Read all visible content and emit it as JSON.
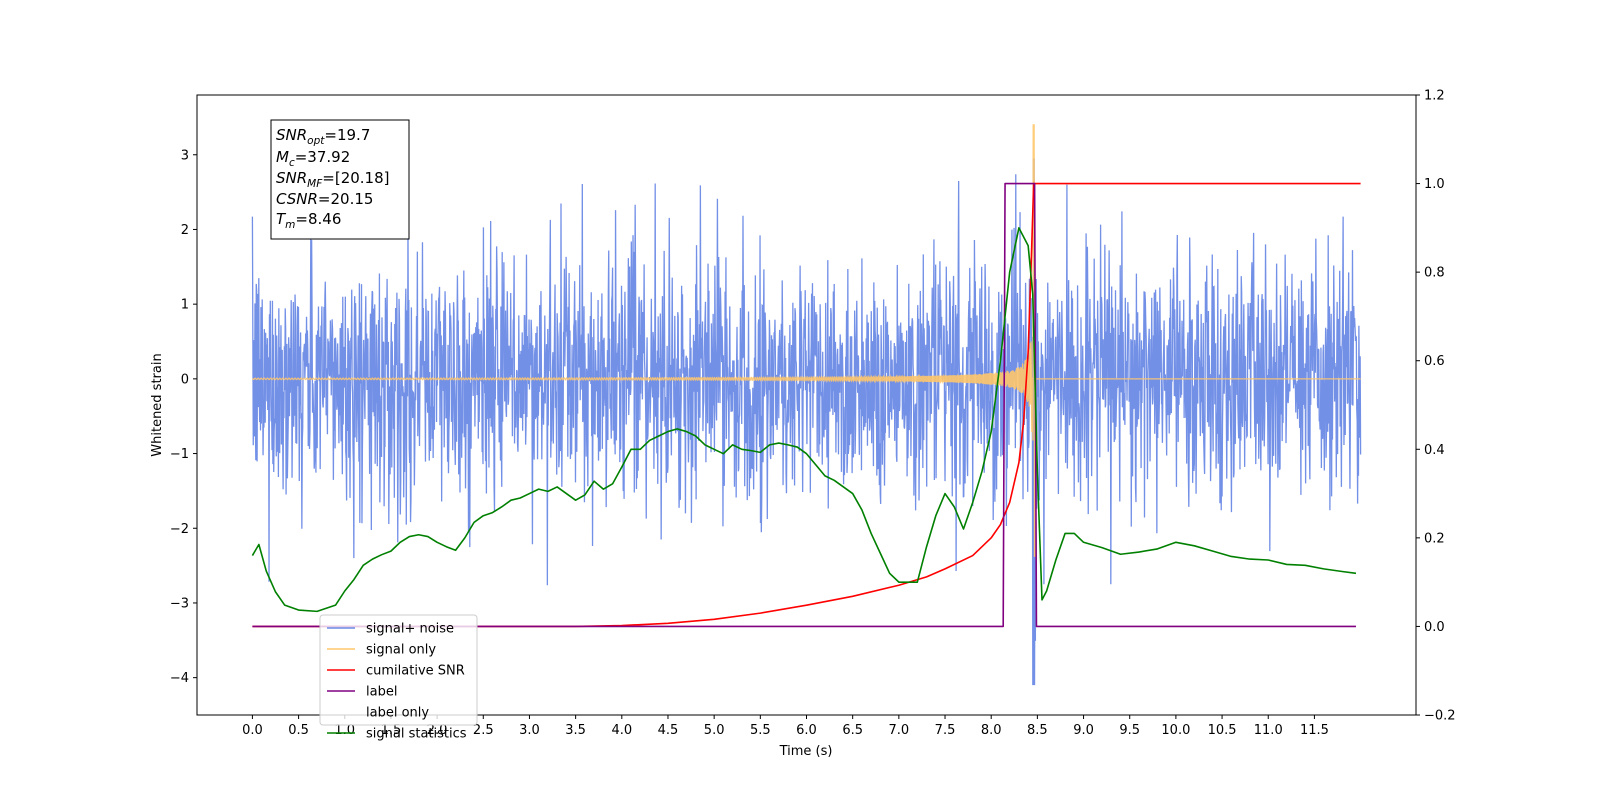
{
  "chart_data": {
    "type": "line",
    "xlabel": "Time (s)",
    "ylabel_left": "Whitened strain",
    "ylabel_right": "",
    "xlim": [
      -0.6,
      12.6
    ],
    "ylim_left": [
      -4.5,
      3.8
    ],
    "ylim_right": [
      -0.2,
      1.2
    ],
    "x_ticks": [
      "0.0",
      "0.5",
      "1.0",
      "1.5",
      "2.0",
      "2.5",
      "3.0",
      "3.5",
      "4.0",
      "4.5",
      "5.0",
      "5.5",
      "6.0",
      "6.5",
      "7.0",
      "7.5",
      "8.0",
      "8.5",
      "9.0",
      "9.5",
      "10.0",
      "10.5",
      "11.0",
      "11.5"
    ],
    "y_ticks_left": [
      "3",
      "2",
      "1",
      "0",
      "−1",
      "−2",
      "−3",
      "−4"
    ],
    "y_ticks_right": [
      "1.2",
      "1.0",
      "0.8",
      "0.6",
      "0.4",
      "0.2",
      "0.0",
      "−0.2"
    ],
    "grid": false,
    "legend_position": "lower-left",
    "annotation_box": {
      "lines": [
        {
          "sym": "SNR",
          "sub": "opt",
          "value": "=19.7"
        },
        {
          "sym": "M",
          "sub": "c",
          "value": "=37.92"
        },
        {
          "sym": "SNR",
          "sub": "MF",
          "value": "=[20.18]"
        },
        {
          "sym": "CSNR",
          "sub": "",
          "value": "=20.15"
        },
        {
          "sym": "T",
          "sub": "m",
          "value": "=8.46"
        }
      ]
    },
    "series": [
      {
        "name": "signal+ noise",
        "axis": "left",
        "color": "#6b8ae6",
        "x_start": 0.0,
        "x_end": 12.0,
        "noise_amplitude_typical": 1.1,
        "noise_extrema": [
          -4.1,
          2.95
        ],
        "merger_time": 8.46
      },
      {
        "name": "signal only",
        "axis": "left",
        "color": "#ffc76b",
        "x_start": 0.0,
        "x_end": 12.0,
        "peak_amplitude": 3.4,
        "merger_time": 8.46,
        "chirp_start_visible": 5.0
      },
      {
        "name": "cumilative SNR",
        "axis": "right",
        "color": "#ff0000",
        "x": [
          0.0,
          3.5,
          4.0,
          4.5,
          5.0,
          5.5,
          6.0,
          6.5,
          7.0,
          7.3,
          7.5,
          7.8,
          8.0,
          8.1,
          8.2,
          8.3,
          8.35,
          8.4,
          8.43,
          8.46,
          8.5,
          12.0
        ],
        "y": [
          0.0,
          0.0,
          0.002,
          0.007,
          0.016,
          0.03,
          0.048,
          0.068,
          0.093,
          0.112,
          0.13,
          0.16,
          0.2,
          0.23,
          0.28,
          0.37,
          0.46,
          0.62,
          0.8,
          1.0,
          1.0,
          1.0
        ]
      },
      {
        "name": "label",
        "axis": "right",
        "color": "#800080",
        "x": [
          0.0,
          8.13,
          8.15,
          8.47,
          8.49,
          11.95
        ],
        "y": [
          0.0,
          0.0,
          1.0,
          1.0,
          0.0,
          0.0
        ]
      },
      {
        "name": "label only",
        "axis": "right",
        "color": "#ffffff",
        "hidden_in_plot": true
      },
      {
        "name": "signal statistics",
        "axis": "right",
        "color": "#008000",
        "x": [
          0.0,
          0.07,
          0.15,
          0.25,
          0.35,
          0.5,
          0.7,
          0.9,
          1.0,
          1.1,
          1.2,
          1.3,
          1.4,
          1.5,
          1.6,
          1.7,
          1.8,
          1.9,
          2.0,
          2.1,
          2.2,
          2.3,
          2.4,
          2.5,
          2.6,
          2.7,
          2.8,
          2.9,
          3.0,
          3.1,
          3.2,
          3.3,
          3.4,
          3.5,
          3.6,
          3.7,
          3.8,
          3.9,
          4.0,
          4.1,
          4.2,
          4.3,
          4.4,
          4.5,
          4.6,
          4.7,
          4.8,
          4.9,
          5.0,
          5.1,
          5.2,
          5.3,
          5.4,
          5.5,
          5.6,
          5.7,
          5.8,
          5.9,
          6.0,
          6.1,
          6.2,
          6.3,
          6.4,
          6.5,
          6.6,
          6.7,
          6.8,
          6.9,
          7.0,
          7.1,
          7.2,
          7.3,
          7.4,
          7.5,
          7.6,
          7.7,
          7.8,
          7.9,
          8.0,
          8.1,
          8.2,
          8.3,
          8.4,
          8.45,
          8.5,
          8.55,
          8.6,
          8.7,
          8.8,
          8.9,
          9.0,
          9.2,
          9.4,
          9.6,
          9.8,
          10.0,
          10.2,
          10.4,
          10.6,
          10.8,
          11.0,
          11.2,
          11.4,
          11.6,
          11.8,
          11.95
        ],
        "y": [
          0.16,
          0.185,
          0.125,
          0.078,
          0.048,
          0.037,
          0.034,
          0.048,
          0.08,
          0.106,
          0.138,
          0.152,
          0.162,
          0.17,
          0.19,
          0.203,
          0.207,
          0.203,
          0.19,
          0.18,
          0.172,
          0.2,
          0.235,
          0.25,
          0.257,
          0.27,
          0.285,
          0.29,
          0.3,
          0.31,
          0.305,
          0.315,
          0.3,
          0.285,
          0.297,
          0.328,
          0.31,
          0.322,
          0.36,
          0.4,
          0.4,
          0.42,
          0.43,
          0.44,
          0.446,
          0.44,
          0.43,
          0.41,
          0.4,
          0.39,
          0.41,
          0.4,
          0.397,
          0.393,
          0.41,
          0.414,
          0.41,
          0.405,
          0.39,
          0.365,
          0.34,
          0.33,
          0.315,
          0.3,
          0.263,
          0.21,
          0.165,
          0.12,
          0.1,
          0.1,
          0.1,
          0.18,
          0.25,
          0.3,
          0.27,
          0.22,
          0.28,
          0.35,
          0.44,
          0.6,
          0.8,
          0.9,
          0.86,
          0.75,
          0.35,
          0.06,
          0.08,
          0.15,
          0.21,
          0.21,
          0.19,
          0.178,
          0.163,
          0.168,
          0.175,
          0.19,
          0.182,
          0.17,
          0.158,
          0.152,
          0.15,
          0.14,
          0.138,
          0.13,
          0.124,
          0.12
        ]
      }
    ]
  }
}
